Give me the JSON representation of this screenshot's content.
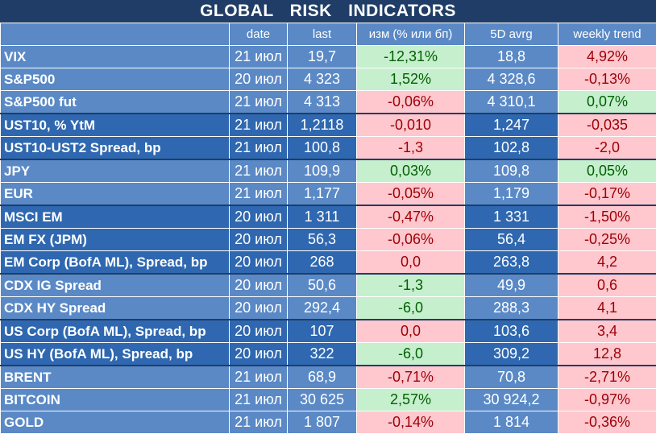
{
  "title": "GLOBAL   RISK   INDICATORS",
  "colors": {
    "header_bg": "#1f3d66",
    "light_band": "#5a89c6",
    "dark_band": "#2f68b0",
    "positive_bg": "#c6efce",
    "positive_fg": "#006100",
    "negative_bg": "#ffc7ce",
    "negative_fg": "#9c0006"
  },
  "columns": [
    "",
    "date",
    "last",
    "изм (% или бп)",
    "5D avrg",
    "weekly trend"
  ],
  "groups": [
    {
      "band": "light",
      "rows": [
        {
          "name": "VIX",
          "date": "21 июл",
          "last": "19,7",
          "chg": "-12,31%",
          "chg_sign": "pos",
          "avg": "18,8",
          "wk": "4,92%",
          "wk_sign": "neg"
        },
        {
          "name": "S&P500",
          "date": "20 июл",
          "last": "4 323",
          "chg": "1,52%",
          "chg_sign": "pos",
          "avg": "4 328,6",
          "wk": "-0,13%",
          "wk_sign": "neg"
        },
        {
          "name": "S&P500 fut",
          "date": "21 июл",
          "last": "4 313",
          "chg": "-0,06%",
          "chg_sign": "neg",
          "avg": "4 310,1",
          "wk": "0,07%",
          "wk_sign": "pos"
        }
      ]
    },
    {
      "band": "dark",
      "rows": [
        {
          "name": "UST10, % YtM",
          "date": "21 июл",
          "last": "1,2118",
          "chg": "-0,010",
          "chg_sign": "neg",
          "avg": "1,247",
          "wk": "-0,035",
          "wk_sign": "neg"
        },
        {
          "name": "UST10-UST2 Spread, bp",
          "date": "21 июл",
          "last": "100,8",
          "chg": "-1,3",
          "chg_sign": "neg",
          "avg": "102,8",
          "wk": "-2,0",
          "wk_sign": "neg"
        }
      ]
    },
    {
      "band": "light",
      "rows": [
        {
          "name": "JPY",
          "date": "21 июл",
          "last": "109,9",
          "chg": "0,03%",
          "chg_sign": "pos",
          "avg": "109,8",
          "wk": "0,05%",
          "wk_sign": "pos"
        },
        {
          "name": "EUR",
          "date": "21 июл",
          "last": "1,177",
          "chg": "-0,05%",
          "chg_sign": "neg",
          "avg": "1,179",
          "wk": "-0,17%",
          "wk_sign": "neg"
        }
      ]
    },
    {
      "band": "dark",
      "rows": [
        {
          "name": "MSCI EM",
          "date": "20 июл",
          "last": "1 311",
          "chg": "-0,47%",
          "chg_sign": "neg",
          "avg": "1 331",
          "wk": "-1,50%",
          "wk_sign": "neg"
        },
        {
          "name": "EM FX (JPM)",
          "date": "20 июл",
          "last": "56,3",
          "chg": "-0,06%",
          "chg_sign": "neg",
          "avg": "56,4",
          "wk": "-0,25%",
          "wk_sign": "neg"
        },
        {
          "name": "EM Corp (BofA ML), Spread, bp",
          "date": "20 июл",
          "last": "268",
          "chg": "0,0",
          "chg_sign": "neg",
          "avg": "263,8",
          "wk": "4,2",
          "wk_sign": "neg"
        }
      ]
    },
    {
      "band": "light",
      "rows": [
        {
          "name": "CDX IG Spread",
          "date": "20 июл",
          "last": "50,6",
          "chg": "-1,3",
          "chg_sign": "pos",
          "avg": "49,9",
          "wk": "0,6",
          "wk_sign": "neg"
        },
        {
          "name": "CDX HY Spread",
          "date": "20 июл",
          "last": "292,4",
          "chg": "-6,0",
          "chg_sign": "pos",
          "avg": "288,3",
          "wk": "4,1",
          "wk_sign": "neg"
        }
      ]
    },
    {
      "band": "dark",
      "rows": [
        {
          "name": "US Corp (BofA ML), Spread, bp",
          "date": "20 июл",
          "last": "107",
          "chg": "0,0",
          "chg_sign": "neg",
          "avg": "103,6",
          "wk": "3,4",
          "wk_sign": "neg"
        },
        {
          "name": "US HY (BofA ML), Spread, bp",
          "date": "20 июл",
          "last": "322",
          "chg": "-6,0",
          "chg_sign": "pos",
          "avg": "309,2",
          "wk": "12,8",
          "wk_sign": "neg"
        }
      ]
    },
    {
      "band": "light",
      "rows": [
        {
          "name": "BRENT",
          "date": "21 июл",
          "last": "68,9",
          "chg": "-0,71%",
          "chg_sign": "neg",
          "avg": "70,8",
          "wk": "-2,71%",
          "wk_sign": "neg"
        },
        {
          "name": "BITCOIN",
          "date": "21 июл",
          "last": "30 625",
          "chg": "2,57%",
          "chg_sign": "pos",
          "avg": "30 924,2",
          "wk": "-0,97%",
          "wk_sign": "neg"
        },
        {
          "name": "GOLD",
          "date": "21 июл",
          "last": "1 807",
          "chg": "-0,14%",
          "chg_sign": "neg",
          "avg": "1 814",
          "wk": "-0,36%",
          "wk_sign": "neg"
        }
      ]
    }
  ]
}
